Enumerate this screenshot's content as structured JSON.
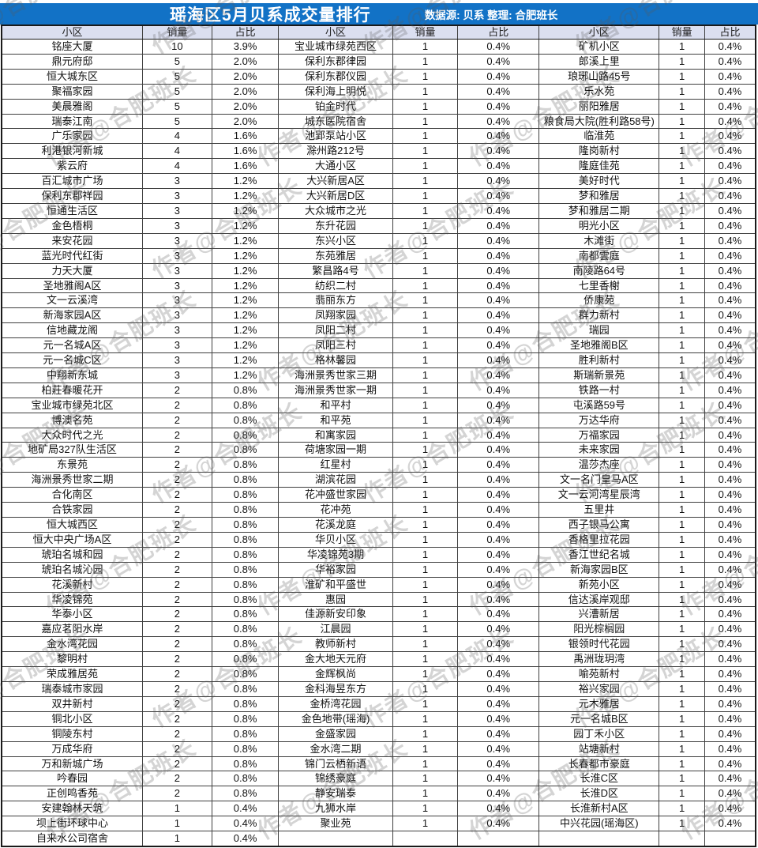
{
  "header": {
    "title": "瑶海区5月贝系成交量排行",
    "meta": "数据源: 贝系  整理: 合肥班长"
  },
  "watermark": "作者@合肥班长",
  "columns": [
    "小区",
    "销量",
    "占比"
  ],
  "colors": {
    "title_bar": "#1272c6",
    "header_row": "#dbdff0",
    "grid_line": "#3f3f3f"
  },
  "table": {
    "groups": [
      {
        "rows": [
          [
            "铭座大厦",
            "10",
            "3.9%"
          ],
          [
            "鼎元府邸",
            "5",
            "2.0%"
          ],
          [
            "恒大城东区",
            "5",
            "2.0%"
          ],
          [
            "聚福家园",
            "5",
            "2.0%"
          ],
          [
            "美晨雅阁",
            "5",
            "2.0%"
          ],
          [
            "瑞泰江南",
            "5",
            "2.0%"
          ],
          [
            "广乐家园",
            "4",
            "1.6%"
          ],
          [
            "利港银河新城",
            "4",
            "1.6%"
          ],
          [
            "紫云府",
            "4",
            "1.6%"
          ],
          [
            "百汇城市广场",
            "3",
            "1.2%"
          ],
          [
            "保利东郡祥园",
            "3",
            "1.2%"
          ],
          [
            "恒通生活区",
            "3",
            "1.2%"
          ],
          [
            "金色梧桐",
            "3",
            "1.2%"
          ],
          [
            "来安花园",
            "3",
            "1.2%"
          ],
          [
            "蓝光时代红街",
            "3",
            "1.2%"
          ],
          [
            "力天大厦",
            "3",
            "1.2%"
          ],
          [
            "圣地雅阁A区",
            "3",
            "1.2%"
          ],
          [
            "文一云溪湾",
            "3",
            "1.2%"
          ],
          [
            "新海家园A区",
            "3",
            "1.2%"
          ],
          [
            "信地藏龙阁",
            "3",
            "1.2%"
          ],
          [
            "元一名城A区",
            "3",
            "1.2%"
          ],
          [
            "元一名城C区",
            "3",
            "1.2%"
          ],
          [
            "中翔新东城",
            "3",
            "1.2%"
          ],
          [
            "柏莊春暖花开",
            "2",
            "0.8%"
          ],
          [
            "宝业城市绿苑北区",
            "2",
            "0.8%"
          ],
          [
            "博澳名苑",
            "2",
            "0.8%"
          ],
          [
            "大众时代之光",
            "2",
            "0.8%"
          ],
          [
            "地矿局327队生活区",
            "2",
            "0.8%"
          ],
          [
            "东景苑",
            "2",
            "0.8%"
          ],
          [
            "海洲景秀世家二期",
            "2",
            "0.8%"
          ],
          [
            "合化南区",
            "2",
            "0.8%"
          ],
          [
            "合铁家园",
            "2",
            "0.8%"
          ],
          [
            "恒大城西区",
            "2",
            "0.8%"
          ],
          [
            "恒大中央广场A区",
            "2",
            "0.8%"
          ],
          [
            "琥珀名城和园",
            "2",
            "0.8%"
          ],
          [
            "琥珀名城沁园",
            "2",
            "0.8%"
          ],
          [
            "花溪新村",
            "2",
            "0.8%"
          ],
          [
            "华凌锦苑",
            "2",
            "0.8%"
          ],
          [
            "华泰小区",
            "2",
            "0.8%"
          ],
          [
            "嘉应茗阳水岸",
            "2",
            "0.8%"
          ],
          [
            "金水湾花园",
            "2",
            "0.8%"
          ],
          [
            "黎明村",
            "2",
            "0.8%"
          ],
          [
            "荣成雅居苑",
            "2",
            "0.8%"
          ],
          [
            "瑞泰城市家园",
            "2",
            "0.8%"
          ],
          [
            "双井新村",
            "2",
            "0.8%"
          ],
          [
            "铜北小区",
            "2",
            "0.8%"
          ],
          [
            "铜陵东村",
            "2",
            "0.8%"
          ],
          [
            "万成华府",
            "2",
            "0.8%"
          ],
          [
            "万和新城广场",
            "2",
            "0.8%"
          ],
          [
            "吟春园",
            "2",
            "0.8%"
          ],
          [
            "正创鸣香苑",
            "2",
            "0.8%"
          ],
          [
            "安建翰林天筑",
            "1",
            "0.4%"
          ],
          [
            "坝上街环球中心",
            "1",
            "0.4%"
          ],
          [
            "自来水公司宿舍",
            "1",
            "0.4%"
          ]
        ]
      },
      {
        "rows": [
          [
            "宝业城市绿苑西区",
            "1",
            "0.4%"
          ],
          [
            "保利东郡律园",
            "1",
            "0.4%"
          ],
          [
            "保利东郡仪园",
            "1",
            "0.4%"
          ],
          [
            "保利海上明悦",
            "1",
            "0.4%"
          ],
          [
            "铂金时代",
            "1",
            "0.4%"
          ],
          [
            "城东医院宿舍",
            "1",
            "0.4%"
          ],
          [
            "池郢泵站小区",
            "1",
            "0.4%"
          ],
          [
            "滁州路212号",
            "1",
            "0.4%"
          ],
          [
            "大通小区",
            "1",
            "0.4%"
          ],
          [
            "大兴新居A区",
            "1",
            "0.4%"
          ],
          [
            "大兴新居D区",
            "1",
            "0.4%"
          ],
          [
            "大众城市之光",
            "1",
            "0.4%"
          ],
          [
            "东升花园",
            "1",
            "0.4%"
          ],
          [
            "东兴小区",
            "1",
            "0.4%"
          ],
          [
            "东苑雅居",
            "1",
            "0.4%"
          ],
          [
            "繁昌路4号",
            "1",
            "0.4%"
          ],
          [
            "纺织二村",
            "1",
            "0.4%"
          ],
          [
            "翡丽东方",
            "1",
            "0.4%"
          ],
          [
            "凤翔家园",
            "1",
            "0.4%"
          ],
          [
            "凤阳二村",
            "1",
            "0.4%"
          ],
          [
            "凤阳三村",
            "1",
            "0.4%"
          ],
          [
            "格林馨园",
            "1",
            "0.4%"
          ],
          [
            "海洲景秀世家三期",
            "1",
            "0.4%"
          ],
          [
            "海洲景秀世家一期",
            "1",
            "0.4%"
          ],
          [
            "和平村",
            "1",
            "0.4%"
          ],
          [
            "和平苑",
            "1",
            "0.4%"
          ],
          [
            "和寓家园",
            "1",
            "0.4%"
          ],
          [
            "荷塘家园一期",
            "1",
            "0.4%"
          ],
          [
            "红星村",
            "1",
            "0.4%"
          ],
          [
            "湖滨花园",
            "1",
            "0.4%"
          ],
          [
            "花冲盛世家园",
            "1",
            "0.4%"
          ],
          [
            "花冲苑",
            "1",
            "0.4%"
          ],
          [
            "花溪龙庭",
            "1",
            "0.4%"
          ],
          [
            "华贝小区",
            "1",
            "0.4%"
          ],
          [
            "华凌锦苑3期",
            "1",
            "0.4%"
          ],
          [
            "华裕家园",
            "1",
            "0.4%"
          ],
          [
            "淮矿和平盛世",
            "1",
            "0.4%"
          ],
          [
            "惠园",
            "1",
            "0.4%"
          ],
          [
            "佳源新安印象",
            "1",
            "0.4%"
          ],
          [
            "江晨园",
            "1",
            "0.4%"
          ],
          [
            "教师新村",
            "1",
            "0.4%"
          ],
          [
            "金大地天元府",
            "1",
            "0.4%"
          ],
          [
            "金辉枫尚",
            "1",
            "0.4%"
          ],
          [
            "金科海昱东方",
            "1",
            "0.4%"
          ],
          [
            "金桥湾花园",
            "1",
            "0.4%"
          ],
          [
            "金色地带(瑶海)",
            "1",
            "0.4%"
          ],
          [
            "金盛家园",
            "1",
            "0.4%"
          ],
          [
            "金水湾二期",
            "1",
            "0.4%"
          ],
          [
            "锦门云栖新语",
            "1",
            "0.4%"
          ],
          [
            "锦绣豪庭",
            "1",
            "0.4%"
          ],
          [
            "静安瑞泰",
            "1",
            "0.4%"
          ],
          [
            "九狮水岸",
            "1",
            "0.4%"
          ],
          [
            "聚业苑",
            "1",
            "0.4%"
          ],
          [
            "",
            "",
            ""
          ]
        ]
      },
      {
        "rows": [
          [
            "矿机小区",
            "1",
            "0.4%"
          ],
          [
            "郎溪上里",
            "1",
            "0.4%"
          ],
          [
            "琅琊山路45号",
            "1",
            "0.4%"
          ],
          [
            "乐水苑",
            "1",
            "0.4%"
          ],
          [
            "丽阳雅居",
            "1",
            "0.4%"
          ],
          [
            "粮食局大院(胜利路58号)",
            "1",
            "0.4%"
          ],
          [
            "临淮苑",
            "1",
            "0.4%"
          ],
          [
            "隆岗新村",
            "1",
            "0.4%"
          ],
          [
            "隆庭佳苑",
            "1",
            "0.4%"
          ],
          [
            "美好时代",
            "1",
            "0.4%"
          ],
          [
            "梦和雅居",
            "1",
            "0.4%"
          ],
          [
            "梦和雅居二期",
            "1",
            "0.4%"
          ],
          [
            "明光小区",
            "1",
            "0.4%"
          ],
          [
            "木滩街",
            "1",
            "0.4%"
          ],
          [
            "南都雲庭",
            "1",
            "0.4%"
          ],
          [
            "南陵路64号",
            "1",
            "0.4%"
          ],
          [
            "七里香榭",
            "1",
            "0.4%"
          ],
          [
            "侨康苑",
            "1",
            "0.4%"
          ],
          [
            "群力新村",
            "1",
            "0.4%"
          ],
          [
            "瑞园",
            "1",
            "0.4%"
          ],
          [
            "圣地雅阁B区",
            "1",
            "0.4%"
          ],
          [
            "胜利新村",
            "1",
            "0.4%"
          ],
          [
            "斯瑞新景苑",
            "1",
            "0.4%"
          ],
          [
            "铁路一村",
            "1",
            "0.4%"
          ],
          [
            "屯溪路59号",
            "1",
            "0.4%"
          ],
          [
            "万达华府",
            "1",
            "0.4%"
          ],
          [
            "万福家园",
            "1",
            "0.4%"
          ],
          [
            "未来家园",
            "1",
            "0.4%"
          ],
          [
            "温莎杰座",
            "1",
            "0.4%"
          ],
          [
            "文一名门皇马A区",
            "1",
            "0.4%"
          ],
          [
            "文一云河湾星辰湾",
            "1",
            "0.4%"
          ],
          [
            "五里井",
            "1",
            "0.4%"
          ],
          [
            "西子银马公寓",
            "1",
            "0.4%"
          ],
          [
            "香格里拉花园",
            "1",
            "0.4%"
          ],
          [
            "香江世纪名城",
            "1",
            "0.4%"
          ],
          [
            "新海家园B区",
            "1",
            "0.4%"
          ],
          [
            "新苑小区",
            "1",
            "0.4%"
          ],
          [
            "信达溪岸观邸",
            "1",
            "0.4%"
          ],
          [
            "兴漕新居",
            "1",
            "0.4%"
          ],
          [
            "阳光棕榈园",
            "1",
            "0.4%"
          ],
          [
            "银领时代花园",
            "1",
            "0.4%"
          ],
          [
            "禹洲珑玥湾",
            "1",
            "0.4%"
          ],
          [
            "喻苑新村",
            "1",
            "0.4%"
          ],
          [
            "裕兴家园",
            "1",
            "0.4%"
          ],
          [
            "元木雅居",
            "1",
            "0.4%"
          ],
          [
            "元一名城B区",
            "1",
            "0.4%"
          ],
          [
            "园丁禾小区",
            "1",
            "0.4%"
          ],
          [
            "站塘新村",
            "1",
            "0.4%"
          ],
          [
            "长春都市豪庭",
            "1",
            "0.4%"
          ],
          [
            "长淮C区",
            "1",
            "0.4%"
          ],
          [
            "长淮D区",
            "1",
            "0.4%"
          ],
          [
            "长淮新村A区",
            "1",
            "0.4%"
          ],
          [
            "中兴花园(瑶海区)",
            "1",
            "0.4%"
          ],
          [
            "",
            "",
            ""
          ]
        ]
      }
    ]
  }
}
